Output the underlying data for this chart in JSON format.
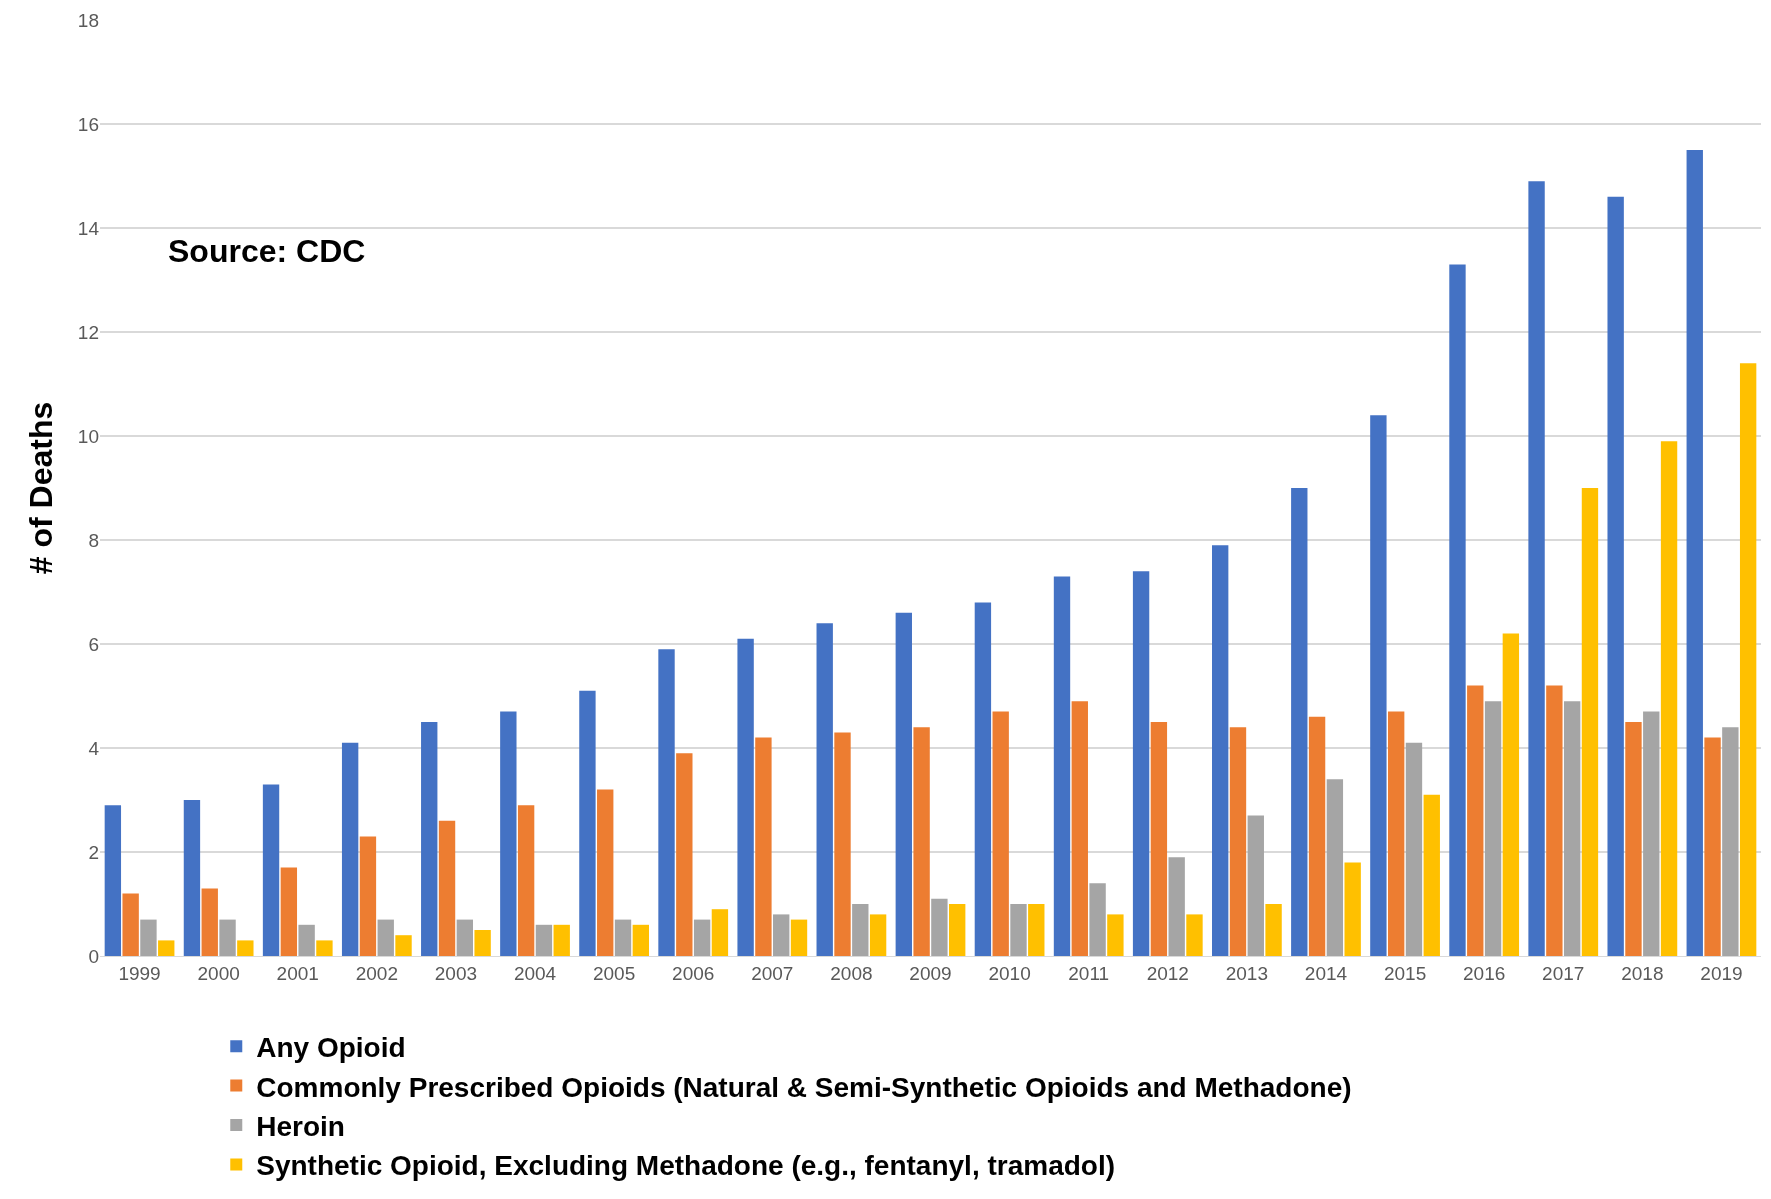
{
  "chart_data": {
    "type": "bar",
    "ylabel": "# of Deaths",
    "annotations": [
      "Source: CDC"
    ],
    "categories": [
      "1999",
      "2000",
      "2001",
      "2002",
      "2003",
      "2004",
      "2005",
      "2006",
      "2007",
      "2008",
      "2009",
      "2010",
      "2011",
      "2012",
      "2013",
      "2014",
      "2015",
      "2016",
      "2017",
      "2018",
      "2019"
    ],
    "series": [
      {
        "name": "Any Opioid",
        "color": "#4472c4",
        "values": [
          2.9,
          3.0,
          3.3,
          4.1,
          4.5,
          4.7,
          5.1,
          5.9,
          6.1,
          6.4,
          6.6,
          6.8,
          7.3,
          7.4,
          7.9,
          9.0,
          10.4,
          13.3,
          14.9,
          14.6,
          15.5
        ]
      },
      {
        "name": "Commonly Prescribed Opioids (Natural & Semi-Synthetic Opioids and Methadone)",
        "color": "#ed7d31",
        "values": [
          1.2,
          1.3,
          1.7,
          2.3,
          2.6,
          2.9,
          3.2,
          3.9,
          4.2,
          4.3,
          4.4,
          4.7,
          4.9,
          4.5,
          4.4,
          4.6,
          4.7,
          5.2,
          5.2,
          4.5,
          4.2
        ]
      },
      {
        "name": "Heroin",
        "color": "#a5a5a5",
        "values": [
          0.7,
          0.7,
          0.6,
          0.7,
          0.7,
          0.6,
          0.7,
          0.7,
          0.8,
          1.0,
          1.1,
          1.0,
          1.4,
          1.9,
          2.7,
          3.4,
          4.1,
          4.9,
          4.9,
          4.7,
          4.4
        ]
      },
      {
        "name": "Synthetic Opioid, Excluding Methadone (e.g., fentanyl, tramadol)",
        "color": "#ffc000",
        "values": [
          0.3,
          0.3,
          0.3,
          0.4,
          0.5,
          0.6,
          0.6,
          0.9,
          0.7,
          0.8,
          1.0,
          1.0,
          0.8,
          0.8,
          1.0,
          1.8,
          3.1,
          6.2,
          9.0,
          9.9,
          11.4
        ]
      }
    ],
    "ylim": [
      0,
      18
    ],
    "yticks": [
      0,
      2,
      4,
      6,
      8,
      10,
      12,
      14,
      16,
      18
    ],
    "grid": "y",
    "legend": "bottom left"
  }
}
